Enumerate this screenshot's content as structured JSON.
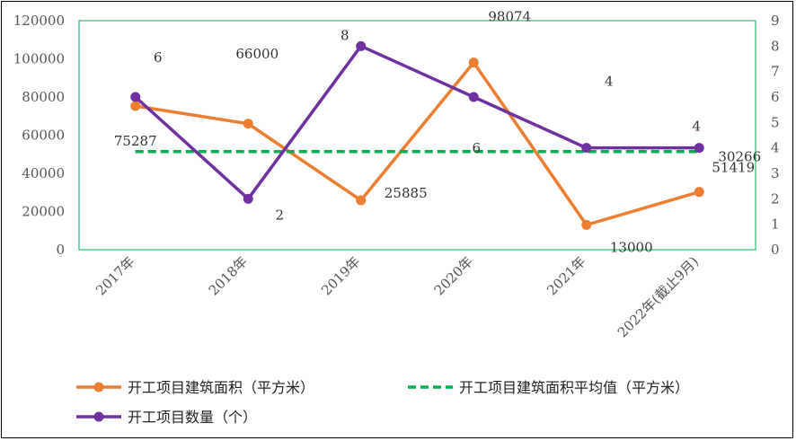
{
  "chart_data": {
    "type": "line",
    "title": "",
    "categories": [
      "2017年",
      "2018年",
      "2019年",
      "2020年",
      "2021年",
      "2022年(截止9月)"
    ],
    "y_left": {
      "range": [
        0,
        120000
      ],
      "ticks": [
        "0",
        "20000",
        "40000",
        "60000",
        "80000",
        "100000",
        "120000"
      ]
    },
    "y_right": {
      "range": [
        0,
        9
      ],
      "ticks": [
        "0",
        "1",
        "2",
        "3",
        "4",
        "5",
        "6",
        "7",
        "8",
        "9"
      ]
    },
    "series": [
      {
        "name": "开工项目建筑面积（平方米）",
        "axis": "left",
        "color": "#ED7D31",
        "style": "solid-marker",
        "values": [
          75287,
          66000,
          25885,
          98074,
          13000,
          30266
        ],
        "labels": [
          "75287",
          "66000",
          "25885",
          "98074",
          "13000",
          "30266"
        ]
      },
      {
        "name": "开工项目建筑面积平均值（平方米）",
        "axis": "left",
        "color": "#00B050",
        "style": "dashed",
        "values": [
          51419,
          51419,
          51419,
          51419,
          51419,
          51419
        ],
        "labels": [
          "51419"
        ]
      },
      {
        "name": "开工项目数量（个）",
        "axis": "right",
        "color": "#7030A0",
        "style": "solid-marker",
        "values": [
          6,
          2,
          8,
          6,
          4,
          4
        ],
        "labels": [
          "6",
          "2",
          "8",
          "6",
          "4",
          "4"
        ]
      }
    ],
    "grid": false,
    "legend_position": "bottom"
  }
}
